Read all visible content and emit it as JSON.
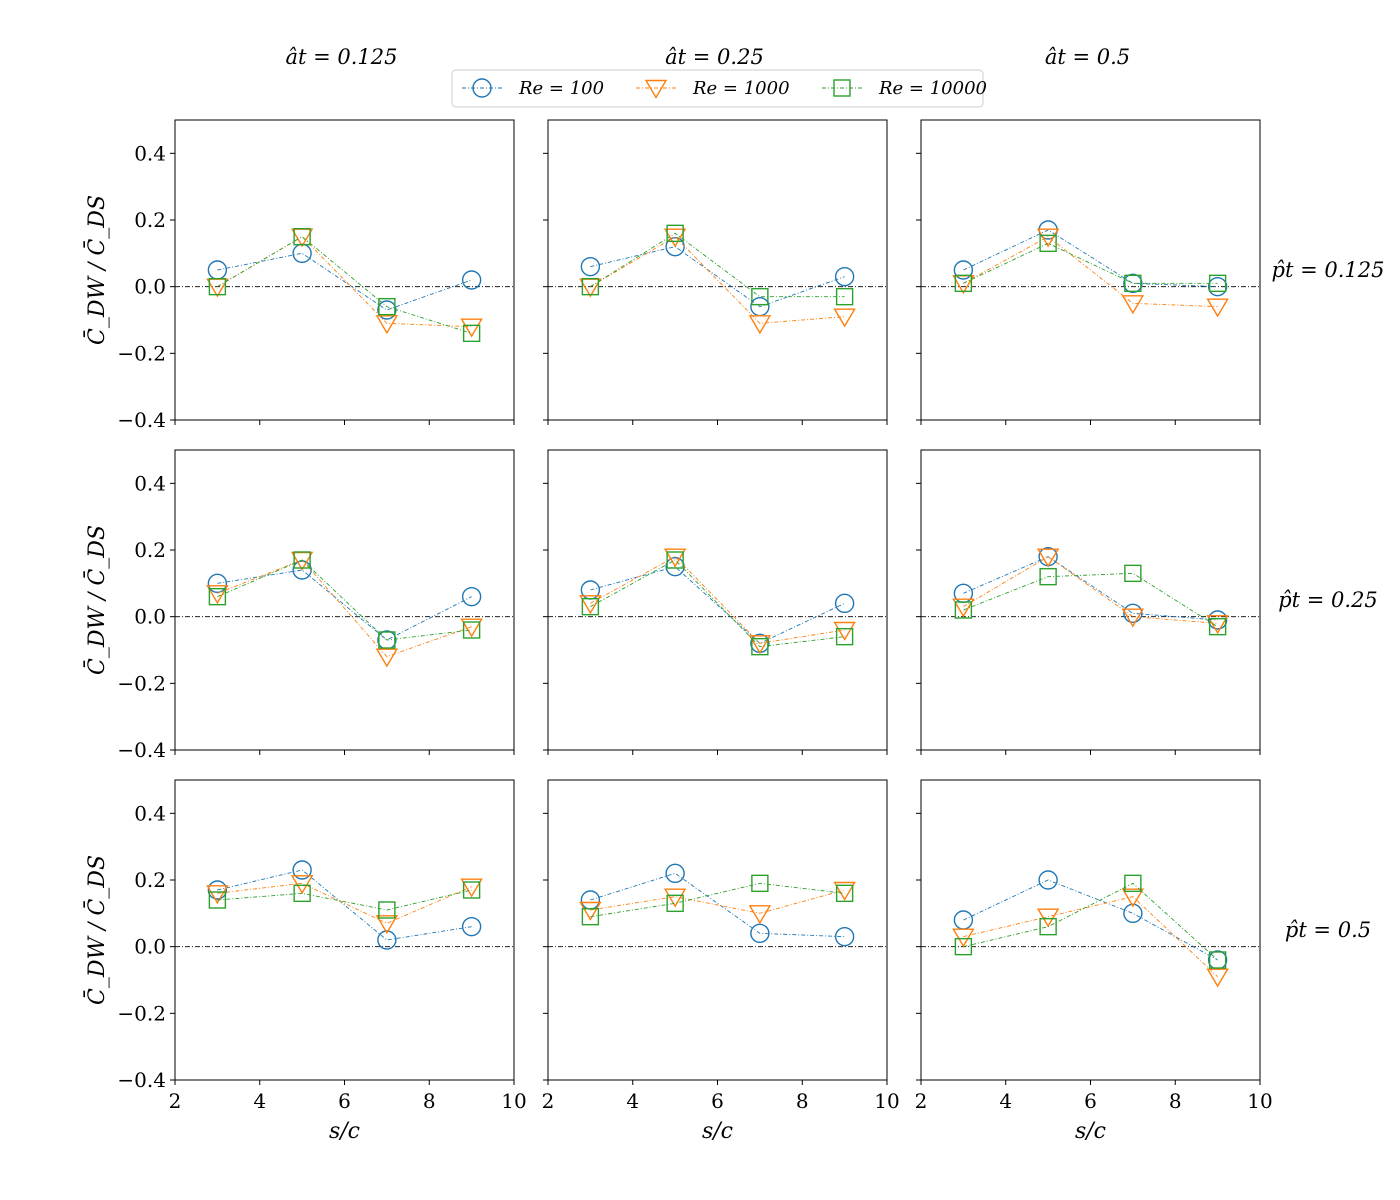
{
  "colors": {
    "re100": "#1f77b4",
    "re1000": "#ff7f0e",
    "re10000": "#2ca02c",
    "zero_line": "#000000"
  },
  "chart_data": {
    "type": "line",
    "layout": "3x3 small multiples, shared axes",
    "xlabel": "s/c",
    "ylabel": "C̄_DW / C̄_DS",
    "xlim": [
      2,
      10
    ],
    "ylim": [
      -0.4,
      0.5
    ],
    "xticks": [
      "2",
      "4",
      "6",
      "8",
      "10"
    ],
    "yticks": [
      "0.4",
      "0.2",
      "0.0",
      "−0.2",
      "−0.4"
    ],
    "zero_line": true,
    "grid": false,
    "legend": {
      "placement": "top-center",
      "entries": [
        {
          "label": "Re = 100",
          "marker": "circle"
        },
        {
          "label": "Re = 1000",
          "marker": "triangle-down"
        },
        {
          "label": "Re = 10000",
          "marker": "square"
        }
      ]
    },
    "column_titles": [
      "ât = 0.125",
      "ât = 0.25",
      "ât = 0.5"
    ],
    "row_titles": [
      "p̂t = 0.125",
      "p̂t = 0.25",
      "p̂t = 0.5"
    ],
    "x": [
      3,
      5,
      7,
      9
    ],
    "panels": [
      {
        "row": 0,
        "col": 0,
        "series": [
          {
            "name": "Re = 100",
            "values": [
              0.05,
              0.1,
              -0.07,
              0.02
            ]
          },
          {
            "name": "Re = 1000",
            "values": [
              0.0,
              0.15,
              -0.11,
              -0.12
            ]
          },
          {
            "name": "Re = 10000",
            "values": [
              0.0,
              0.15,
              -0.06,
              -0.14
            ]
          }
        ]
      },
      {
        "row": 0,
        "col": 1,
        "series": [
          {
            "name": "Re = 100",
            "values": [
              0.06,
              0.12,
              -0.06,
              0.03
            ]
          },
          {
            "name": "Re = 1000",
            "values": [
              0.0,
              0.15,
              -0.11,
              -0.09
            ]
          },
          {
            "name": "Re = 10000",
            "values": [
              0.0,
              0.16,
              -0.03,
              -0.03
            ]
          }
        ]
      },
      {
        "row": 0,
        "col": 2,
        "series": [
          {
            "name": "Re = 100",
            "values": [
              0.05,
              0.17,
              0.01,
              0.0
            ]
          },
          {
            "name": "Re = 1000",
            "values": [
              0.01,
              0.15,
              -0.05,
              -0.06
            ]
          },
          {
            "name": "Re = 10000",
            "values": [
              0.01,
              0.13,
              0.01,
              0.01
            ]
          }
        ]
      },
      {
        "row": 1,
        "col": 0,
        "series": [
          {
            "name": "Re = 100",
            "values": [
              0.1,
              0.14,
              -0.07,
              0.06
            ]
          },
          {
            "name": "Re = 1000",
            "values": [
              0.07,
              0.17,
              -0.12,
              -0.03
            ]
          },
          {
            "name": "Re = 10000",
            "values": [
              0.06,
              0.17,
              -0.07,
              -0.04
            ]
          }
        ]
      },
      {
        "row": 1,
        "col": 1,
        "series": [
          {
            "name": "Re = 100",
            "values": [
              0.08,
              0.15,
              -0.08,
              0.04
            ]
          },
          {
            "name": "Re = 1000",
            "values": [
              0.04,
              0.18,
              -0.08,
              -0.04
            ]
          },
          {
            "name": "Re = 10000",
            "values": [
              0.03,
              0.17,
              -0.09,
              -0.06
            ]
          }
        ]
      },
      {
        "row": 1,
        "col": 2,
        "series": [
          {
            "name": "Re = 100",
            "values": [
              0.07,
              0.18,
              0.01,
              -0.01
            ]
          },
          {
            "name": "Re = 1000",
            "values": [
              0.03,
              0.18,
              0.0,
              -0.02
            ]
          },
          {
            "name": "Re = 10000",
            "values": [
              0.02,
              0.12,
              0.13,
              -0.03
            ]
          }
        ]
      },
      {
        "row": 2,
        "col": 0,
        "series": [
          {
            "name": "Re = 100",
            "values": [
              0.17,
              0.23,
              0.02,
              0.06
            ]
          },
          {
            "name": "Re = 1000",
            "values": [
              0.16,
              0.19,
              0.07,
              0.18
            ]
          },
          {
            "name": "Re = 10000",
            "values": [
              0.14,
              0.16,
              0.11,
              0.17
            ]
          }
        ]
      },
      {
        "row": 2,
        "col": 1,
        "series": [
          {
            "name": "Re = 100",
            "values": [
              0.14,
              0.22,
              0.04,
              0.03
            ]
          },
          {
            "name": "Re = 1000",
            "values": [
              0.11,
              0.15,
              0.1,
              0.17
            ]
          },
          {
            "name": "Re = 10000",
            "values": [
              0.09,
              0.13,
              0.19,
              0.16
            ]
          }
        ]
      },
      {
        "row": 2,
        "col": 2,
        "series": [
          {
            "name": "Re = 100",
            "values": [
              0.08,
              0.2,
              0.1,
              -0.04
            ]
          },
          {
            "name": "Re = 1000",
            "values": [
              0.03,
              0.09,
              0.15,
              -0.09
            ]
          },
          {
            "name": "Re = 10000",
            "values": [
              0.0,
              0.06,
              0.19,
              -0.04
            ]
          }
        ]
      }
    ]
  }
}
